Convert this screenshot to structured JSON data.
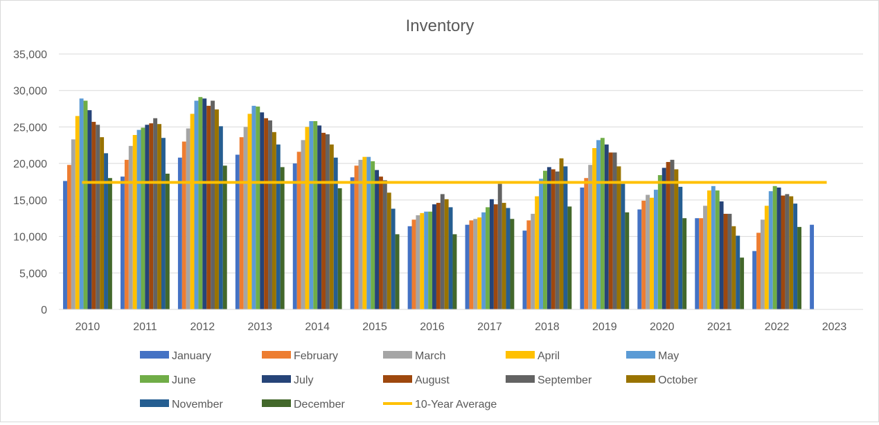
{
  "chart_data": {
    "type": "bar",
    "title": "Inventory",
    "xlabel": "",
    "ylabel": "",
    "ylim": [
      0,
      35000
    ],
    "yticks": [
      0,
      5000,
      10000,
      15000,
      20000,
      25000,
      30000,
      35000
    ],
    "ytick_labels": [
      "0",
      "5,000",
      "10,000",
      "15,000",
      "20,000",
      "25,000",
      "30,000",
      "35,000"
    ],
    "grid": true,
    "legend_position": "bottom",
    "categories": [
      "2010",
      "2011",
      "2012",
      "2013",
      "2014",
      "2015",
      "2016",
      "2017",
      "2018",
      "2019",
      "2020",
      "2021",
      "2022",
      "2023"
    ],
    "series": [
      {
        "name": "January",
        "color": "#4472C4",
        "values": [
          17600,
          18200,
          20800,
          21200,
          20000,
          18100,
          11400,
          11600,
          10800,
          16700,
          13700,
          12500,
          8000,
          11600
        ]
      },
      {
        "name": "February",
        "color": "#ED7D31",
        "values": [
          19800,
          20500,
          23000,
          23600,
          21600,
          19700,
          12300,
          12200,
          12200,
          18000,
          14900,
          12500,
          10500,
          null
        ]
      },
      {
        "name": "March",
        "color": "#A5A5A5",
        "values": [
          23300,
          22400,
          24800,
          25000,
          23200,
          20500,
          12900,
          12400,
          13100,
          19800,
          15700,
          14200,
          12300,
          null
        ]
      },
      {
        "name": "April",
        "color": "#FFC000",
        "values": [
          26500,
          23900,
          26800,
          26800,
          25000,
          20900,
          13200,
          12600,
          15500,
          22100,
          15300,
          16300,
          14200,
          null
        ]
      },
      {
        "name": "May",
        "color": "#5B9BD5",
        "values": [
          28900,
          24600,
          28600,
          27900,
          25800,
          20900,
          13400,
          13300,
          17900,
          23200,
          16400,
          16900,
          16200,
          null
        ]
      },
      {
        "name": "June",
        "color": "#70AD47",
        "values": [
          28600,
          24900,
          29100,
          27800,
          25800,
          20300,
          13400,
          14000,
          19000,
          23500,
          18400,
          16300,
          16900,
          null
        ]
      },
      {
        "name": "July",
        "color": "#264478",
        "values": [
          27300,
          25300,
          28900,
          27000,
          25200,
          19100,
          14400,
          15100,
          19500,
          22600,
          19400,
          14800,
          16700,
          null
        ]
      },
      {
        "name": "August",
        "color": "#9E480E",
        "values": [
          25700,
          25500,
          27900,
          26200,
          24200,
          18200,
          14600,
          14400,
          19200,
          21500,
          20200,
          13100,
          15600,
          null
        ]
      },
      {
        "name": "September",
        "color": "#636363",
        "values": [
          25300,
          26200,
          28600,
          25900,
          24000,
          17700,
          15800,
          17200,
          18900,
          21500,
          20500,
          13100,
          15800,
          null
        ]
      },
      {
        "name": "October",
        "color": "#997300",
        "values": [
          23600,
          25400,
          27400,
          24300,
          22600,
          16000,
          15100,
          14600,
          20700,
          19600,
          19200,
          11400,
          15500,
          null
        ]
      },
      {
        "name": "November",
        "color": "#255E91",
        "values": [
          21400,
          23500,
          25100,
          22600,
          20800,
          13800,
          14000,
          13900,
          19600,
          17200,
          16800,
          10100,
          14500,
          null
        ]
      },
      {
        "name": "December",
        "color": "#43682B",
        "values": [
          18000,
          18600,
          19700,
          19500,
          16600,
          10300,
          10300,
          12400,
          14100,
          13300,
          12500,
          7100,
          11300,
          null
        ]
      }
    ],
    "reference_line": {
      "name": "10-Year Average",
      "color": "#FFC000",
      "value": 17400,
      "from": "2010",
      "to": "2023"
    }
  }
}
